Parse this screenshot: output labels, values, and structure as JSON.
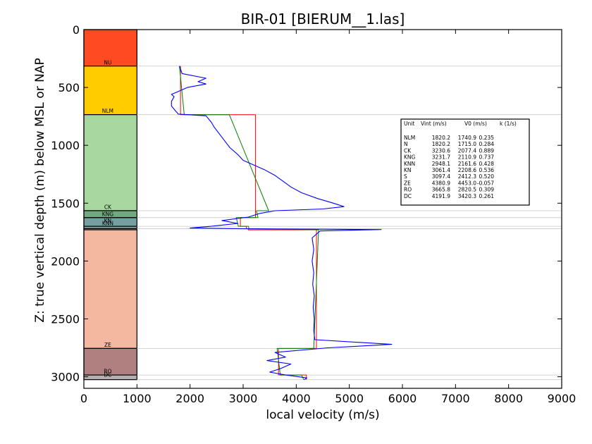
{
  "chart_data": {
    "type": "line",
    "title": "BIR-01 [BIERUM__1.las]",
    "xlabel": "local velocity (m/s)",
    "ylabel": "Z: true vertical depth (m) below MSL or NAP",
    "xlim": [
      0,
      9000
    ],
    "ylim": [
      3100,
      0
    ],
    "y_inverted": true,
    "x_ticks": [
      "0",
      "1000",
      "2000",
      "3000",
      "4000",
      "5000",
      "6000",
      "7000",
      "8000",
      "9000"
    ],
    "x_tick_values": [
      0,
      1000,
      2000,
      3000,
      4000,
      5000,
      6000,
      7000,
      8000,
      9000
    ],
    "y_ticks": [
      "0",
      "500",
      "1000",
      "1500",
      "2000",
      "2500",
      "3000"
    ],
    "y_tick_values": [
      0,
      500,
      1000,
      1500,
      2000,
      2500,
      3000
    ],
    "strat_column": [
      {
        "unit": "NU",
        "top": 0,
        "base": 315,
        "color": "#ff4a22"
      },
      {
        "unit": "NLM",
        "top": 315,
        "base": 735,
        "color": "#ffcc00"
      },
      {
        "unit": "CK",
        "top": 735,
        "base": 1565,
        "color": "#a8d8a0"
      },
      {
        "unit": "KNG",
        "top": 1565,
        "base": 1625,
        "color": "#74a880"
      },
      {
        "unit": "KNN",
        "top": 1625,
        "base": 1700,
        "color": "#74a0a0"
      },
      {
        "unit": "KN",
        "top": 1700,
        "base": 1720,
        "color": "#88a8b0"
      },
      {
        "unit": "S",
        "top": 1720,
        "base": 1730,
        "color": "#c8a0a0"
      },
      {
        "unit": "ZE",
        "top": 1730,
        "base": 2755,
        "color": "#f4b8a0"
      },
      {
        "unit": "RO",
        "top": 2755,
        "base": 2985,
        "color": "#b08080"
      },
      {
        "unit": "DC",
        "top": 2985,
        "base": 3025,
        "color": "#b8b0b0"
      }
    ],
    "strat_labels": [
      {
        "text": "NU",
        "depth": 300
      },
      {
        "text": "NLM",
        "depth": 720
      },
      {
        "text": "CK",
        "depth": 1550
      },
      {
        "text": "KNG",
        "depth": 1610
      },
      {
        "text": "KNN",
        "depth": 1690
      },
      {
        "text": "KN",
        "depth": 1670
      },
      {
        "text": "ZE",
        "depth": 2740
      },
      {
        "text": "RO",
        "depth": 2970
      },
      {
        "text": "DC",
        "depth": 3000
      }
    ],
    "boundaries": [
      315,
      735,
      1565,
      1625,
      1700,
      1720,
      2755,
      2985,
      3025
    ],
    "series": [
      {
        "role": "interval",
        "color": "#ff0000",
        "points": [
          [
            1820.2,
            315
          ],
          [
            1820.2,
            735
          ],
          [
            3230.6,
            735
          ],
          [
            3230.6,
            1565
          ],
          [
            3231.7,
            1565
          ],
          [
            3231.7,
            1625
          ],
          [
            2948.1,
            1625
          ],
          [
            2948.1,
            1700
          ],
          [
            3061.4,
            1700
          ],
          [
            3061.4,
            1720
          ],
          [
            3097.4,
            1720
          ],
          [
            3097.4,
            1730
          ],
          [
            4380.9,
            1730
          ],
          [
            4380.9,
            2755
          ],
          [
            3665.8,
            2755
          ],
          [
            3665.8,
            2985
          ],
          [
            4191.9,
            2985
          ],
          [
            4191.9,
            3025
          ]
        ]
      },
      {
        "role": "trend",
        "color": "#008000",
        "points": [
          [
            1800,
            315
          ],
          [
            1890,
            735
          ],
          [
            2740,
            735
          ],
          [
            3480,
            1565
          ],
          [
            3250,
            1565
          ],
          [
            3280,
            1625
          ],
          [
            2870,
            1625
          ],
          [
            2910,
            1700
          ],
          [
            3100,
            1700
          ],
          [
            3110,
            1720
          ],
          [
            4420,
            1730
          ],
          [
            4330,
            2755
          ],
          [
            3640,
            2755
          ],
          [
            3700,
            2985
          ],
          [
            4100,
            2985
          ],
          [
            4140,
            3025
          ]
        ]
      },
      {
        "role": "log",
        "color": "#0000ff",
        "points": [
          [
            1800,
            315
          ],
          [
            1850,
            380
          ],
          [
            2300,
            420
          ],
          [
            2150,
            450
          ],
          [
            2300,
            470
          ],
          [
            1950,
            500
          ],
          [
            1750,
            540
          ],
          [
            1650,
            560
          ],
          [
            1700,
            580
          ],
          [
            1650,
            620
          ],
          [
            1650,
            660
          ],
          [
            1720,
            700
          ],
          [
            1780,
            730
          ],
          [
            2300,
            745
          ],
          [
            2400,
            800
          ],
          [
            2450,
            840
          ],
          [
            2550,
            900
          ],
          [
            2650,
            960
          ],
          [
            2750,
            1020
          ],
          [
            2900,
            1080
          ],
          [
            3000,
            1130
          ],
          [
            3200,
            1170
          ],
          [
            3400,
            1210
          ],
          [
            3600,
            1260
          ],
          [
            3750,
            1310
          ],
          [
            3900,
            1360
          ],
          [
            4100,
            1410
          ],
          [
            4400,
            1460
          ],
          [
            4700,
            1500
          ],
          [
            4900,
            1530
          ],
          [
            4500,
            1550
          ],
          [
            3600,
            1565
          ],
          [
            3300,
            1590
          ],
          [
            3100,
            1620
          ],
          [
            2600,
            1650
          ],
          [
            2900,
            1675
          ],
          [
            2400,
            1700
          ],
          [
            2000,
            1715
          ],
          [
            3100,
            1722
          ],
          [
            5600,
            1728
          ],
          [
            4450,
            1740
          ],
          [
            4300,
            1800
          ],
          [
            4330,
            1900
          ],
          [
            4300,
            2000
          ],
          [
            4330,
            2100
          ],
          [
            4310,
            2200
          ],
          [
            4340,
            2300
          ],
          [
            4320,
            2400
          ],
          [
            4340,
            2500
          ],
          [
            4330,
            2600
          ],
          [
            4350,
            2680
          ],
          [
            5800,
            2720
          ],
          [
            4600,
            2750
          ],
          [
            3600,
            2790
          ],
          [
            3800,
            2830
          ],
          [
            3450,
            2860
          ],
          [
            3900,
            2890
          ],
          [
            3700,
            2930
          ],
          [
            3500,
            2960
          ],
          [
            3800,
            2985
          ],
          [
            4200,
            3010
          ],
          [
            4150,
            3025
          ]
        ]
      }
    ],
    "legend": {
      "placement": "upper-right",
      "header": [
        "Unit",
        "Vint (m/s)",
        "V0 (m/s)",
        "k (1/s)"
      ],
      "rows": [
        [
          "NLM",
          "1820.2",
          "1740.9",
          "0.235"
        ],
        [
          "N",
          "1820.2",
          "1715.0",
          "0.284"
        ],
        [
          "CK",
          "3230.6",
          "2077.4",
          "0.889"
        ],
        [
          "KNG",
          "3231.7",
          "2110.9",
          "0.737"
        ],
        [
          "KNN",
          "2948.1",
          "2161.6",
          "0.428"
        ],
        [
          "KN",
          "3061.4",
          "2208.6",
          "0.536"
        ],
        [
          "S",
          "3097.4",
          "2412.3",
          "0.520"
        ],
        [
          "ZE",
          "4380.9",
          "4453.0",
          "-0.057"
        ],
        [
          "RO",
          "3665.8",
          "2820.5",
          "0.309"
        ],
        [
          "DC",
          "4191.9",
          "3420.3",
          "0.261"
        ]
      ]
    },
    "grid": false
  }
}
